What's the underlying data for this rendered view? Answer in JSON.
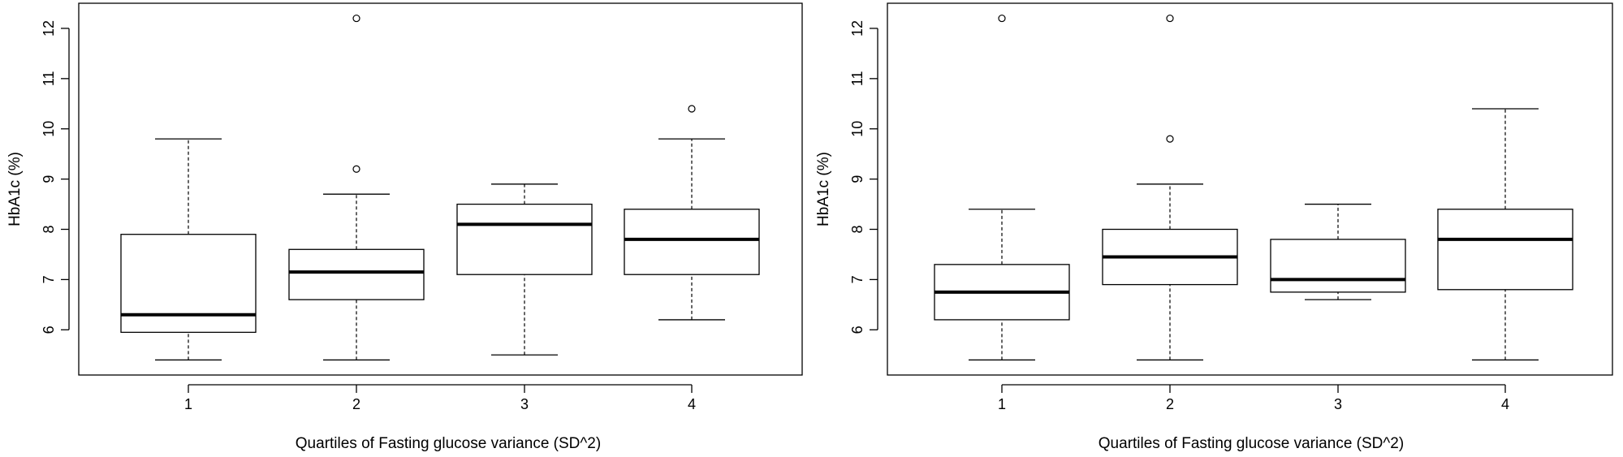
{
  "chart_data": [
    {
      "type": "box",
      "xlabel": "Quartiles of Fasting glucose variance (SD^2)",
      "ylabel": "HbA1c (%)",
      "categories": [
        "1",
        "2",
        "3",
        "4"
      ],
      "ylim": [
        5.1,
        12.5
      ],
      "yticks": [
        "6",
        "7",
        "8",
        "9",
        "10",
        "11",
        "12"
      ],
      "boxes": [
        {
          "category": "1",
          "whisker_low": 5.4,
          "q1": 5.95,
          "median": 6.3,
          "q3": 7.9,
          "whisker_high": 9.8,
          "outliers": []
        },
        {
          "category": "2",
          "whisker_low": 5.4,
          "q1": 6.6,
          "median": 7.15,
          "q3": 7.6,
          "whisker_high": 8.7,
          "outliers": [
            9.2,
            12.2
          ]
        },
        {
          "category": "3",
          "whisker_low": 5.5,
          "q1": 7.1,
          "median": 8.1,
          "q3": 8.5,
          "whisker_high": 8.9,
          "outliers": []
        },
        {
          "category": "4",
          "whisker_low": 6.2,
          "q1": 7.1,
          "median": 7.8,
          "q3": 8.4,
          "whisker_high": 9.8,
          "outliers": [
            10.4
          ]
        }
      ]
    },
    {
      "type": "box",
      "xlabel": "Quartiles of Fasting glucose variance (SD^2)",
      "ylabel": "HbA1c (%)",
      "categories": [
        "1",
        "2",
        "3",
        "4"
      ],
      "ylim": [
        5.1,
        12.5
      ],
      "yticks": [
        "6",
        "7",
        "8",
        "9",
        "10",
        "11",
        "12"
      ],
      "boxes": [
        {
          "category": "1",
          "whisker_low": 5.4,
          "q1": 6.2,
          "median": 6.75,
          "q3": 7.3,
          "whisker_high": 8.4,
          "outliers": [
            12.2
          ]
        },
        {
          "category": "2",
          "whisker_low": 5.4,
          "q1": 6.9,
          "median": 7.45,
          "q3": 8.0,
          "whisker_high": 8.9,
          "outliers": [
            9.8,
            12.2
          ]
        },
        {
          "category": "3",
          "whisker_low": 6.6,
          "q1": 6.75,
          "median": 7.0,
          "q3": 7.8,
          "whisker_high": 8.5,
          "outliers": []
        },
        {
          "category": "4",
          "whisker_low": 5.4,
          "q1": 6.8,
          "median": 7.8,
          "q3": 8.4,
          "whisker_high": 10.4,
          "outliers": []
        }
      ]
    }
  ]
}
